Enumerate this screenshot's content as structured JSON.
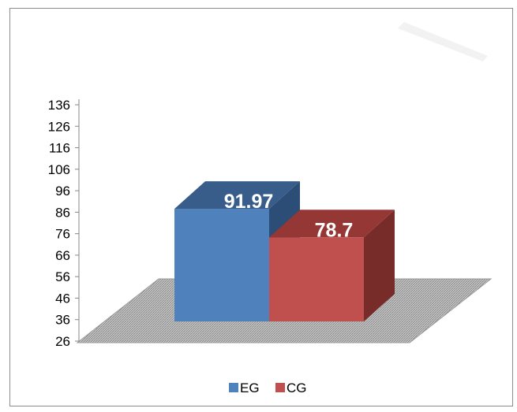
{
  "colors": {
    "eg_front": "#4f81bd",
    "eg_side": "#2c4d75",
    "eg_top": "#385d8a",
    "cg_front": "#c0504d",
    "cg_side": "#772c2a",
    "cg_top": "#953735",
    "floor": "#a6a6a6",
    "axis": "#868686"
  },
  "chart_data": {
    "type": "bar",
    "categories": [
      ""
    ],
    "series": [
      {
        "name": "EG",
        "values": [
          91.97
        ]
      },
      {
        "name": "CG",
        "values": [
          78.7
        ]
      }
    ],
    "data_labels": [
      "91.97",
      "78.7"
    ],
    "yticks": [
      "136",
      "126",
      "116",
      "106",
      "96",
      "86",
      "76",
      "66",
      "56",
      "46",
      "36",
      "26"
    ],
    "ylim": [
      26,
      136
    ],
    "title": "",
    "xlabel": "",
    "ylabel": "",
    "grid": false,
    "legend_position": "bottom",
    "style": "3d-column"
  }
}
